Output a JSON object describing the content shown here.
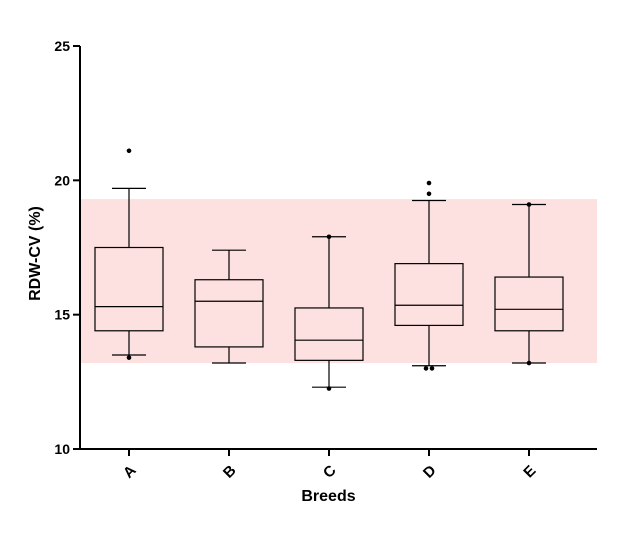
{
  "chart_data": {
    "type": "box",
    "title": "",
    "xlabel": "Breeds",
    "ylabel": "RDW-CV (%)",
    "ylim": [
      10,
      25
    ],
    "yticks": [
      10,
      15,
      20,
      25
    ],
    "grid": false,
    "reference_band": {
      "low": 13.2,
      "high": 19.3,
      "color": "#fde0e0"
    },
    "categories": [
      "A",
      "B",
      "C",
      "D",
      "E"
    ],
    "boxes": [
      {
        "category": "A",
        "whisker_low": 13.5,
        "q1": 14.4,
        "median": 15.3,
        "q3": 17.5,
        "whisker_high": 19.7,
        "outliers": [
          13.4,
          21.1
        ]
      },
      {
        "category": "B",
        "whisker_low": 13.2,
        "q1": 13.8,
        "median": 15.5,
        "q3": 16.3,
        "whisker_high": 17.4,
        "outliers": []
      },
      {
        "category": "C",
        "whisker_low": 12.3,
        "q1": 13.3,
        "median": 14.05,
        "q3": 15.25,
        "whisker_high": 17.9,
        "outliers": [
          12.25,
          17.9
        ]
      },
      {
        "category": "D",
        "whisker_low": 13.1,
        "q1": 14.6,
        "median": 15.35,
        "q3": 16.9,
        "whisker_high": 19.25,
        "outliers": [
          13.0,
          13.0,
          19.5,
          19.9
        ]
      },
      {
        "category": "E",
        "whisker_low": 13.2,
        "q1": 14.4,
        "median": 15.2,
        "q3": 16.4,
        "whisker_high": 19.1,
        "outliers": [
          13.2,
          19.1
        ]
      }
    ],
    "colors": {
      "box": "#000000",
      "band": "#fde0e0",
      "axis": "#000000"
    }
  }
}
